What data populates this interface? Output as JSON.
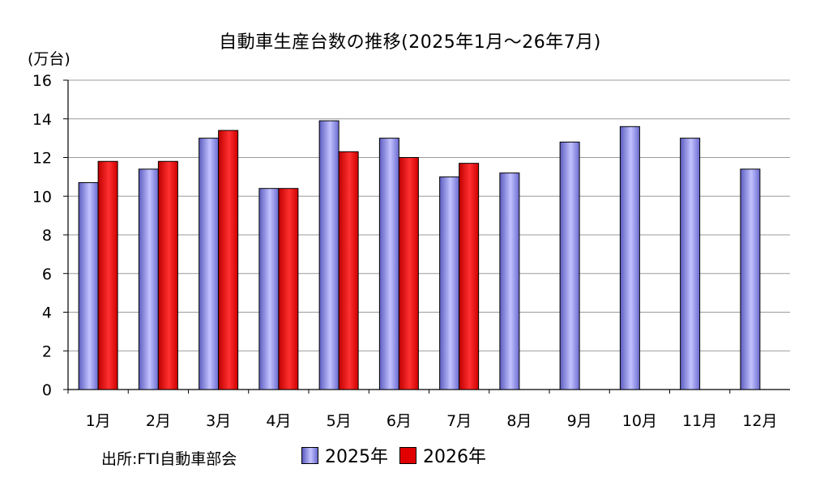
{
  "chart_data": {
    "type": "bar",
    "title": "自動車生産台数の推移(2025年1月～26年7月)",
    "ylabel": "(万台)",
    "categories": [
      "1月",
      "2月",
      "3月",
      "4月",
      "5月",
      "6月",
      "7月",
      "8月",
      "9月",
      "10月",
      "11月",
      "12月"
    ],
    "series": [
      {
        "name": "2025年",
        "color": "#7b7bd6",
        "values": [
          10.7,
          11.4,
          13.0,
          10.4,
          13.9,
          13.0,
          11.0,
          11.2,
          12.8,
          13.6,
          13.0,
          11.4
        ]
      },
      {
        "name": "2026年",
        "color": "#e00000",
        "values": [
          11.8,
          11.8,
          13.4,
          10.4,
          12.3,
          12.0,
          11.7,
          null,
          null,
          null,
          null,
          null
        ]
      }
    ],
    "ylim": [
      0,
      16
    ],
    "yticks": [
      "0",
      "2",
      "4",
      "6",
      "8",
      "10",
      "12",
      "14",
      "16"
    ],
    "grid": true,
    "legend": "bottom",
    "source": "出所:FTI自動車部会"
  }
}
